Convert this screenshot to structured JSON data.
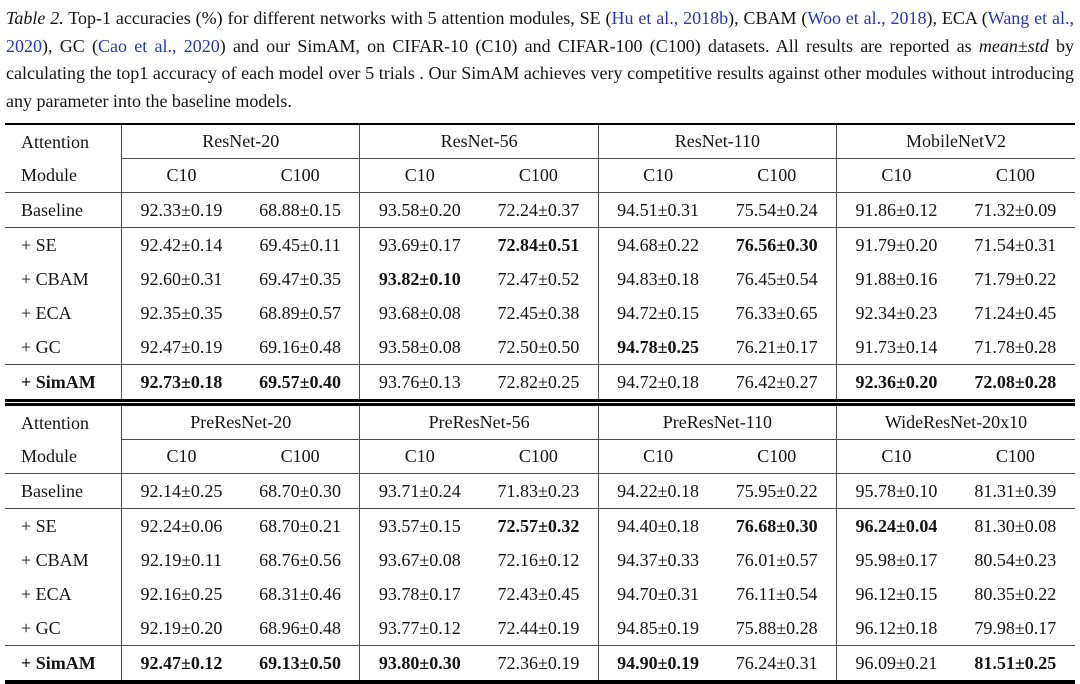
{
  "colors": {
    "citation_link": "#2636b4",
    "text": "#141414",
    "rule_thin": "#4d4d4d",
    "rule_thick": "#000000"
  },
  "caption": {
    "segments": [
      {
        "text": "Table 2.",
        "style": "italic"
      },
      {
        "text": " Top-1 accuracies (%) for different networks with 5 attention modules, SE (",
        "style": "normal"
      },
      {
        "text": "Hu et al., 2018b",
        "style": "link"
      },
      {
        "text": "), CBAM (",
        "style": "normal"
      },
      {
        "text": "Woo et al., 2018",
        "style": "link"
      },
      {
        "text": "), ECA (",
        "style": "normal"
      },
      {
        "text": "Wang et al., 2020",
        "style": "link"
      },
      {
        "text": "), GC (",
        "style": "normal"
      },
      {
        "text": "Cao et al., 2020",
        "style": "link"
      },
      {
        "text": ") and our SimAM, on CIFAR-10 (C10) and CIFAR-100 (C100) datasets. All results are reported as ",
        "style": "normal"
      },
      {
        "text": "mean±std",
        "style": "italic"
      },
      {
        "text": " by calculating the top1 accuracy of each model over 5 trials . Our SimAM achieves very competitive results against other modules without introducing any parameter into the baseline models.",
        "style": "normal"
      }
    ]
  },
  "tables": [
    {
      "corner": [
        "Attention",
        "Module"
      ],
      "groups": [
        "ResNet-20",
        "ResNet-56",
        "ResNet-110",
        "MobileNetV2"
      ],
      "subheaders": [
        "C10",
        "C100"
      ],
      "rows": [
        {
          "label": "Baseline",
          "label_bold": false,
          "values": [
            "92.33±0.19",
            "68.88±0.15",
            "93.58±0.20",
            "72.24±0.37",
            "94.51±0.31",
            "75.54±0.24",
            "91.86±0.12",
            "71.32±0.09"
          ],
          "bold": [
            false,
            false,
            false,
            false,
            false,
            false,
            false,
            false
          ]
        },
        {
          "label": "+ SE",
          "label_bold": false,
          "values": [
            "92.42±0.14",
            "69.45±0.11",
            "93.69±0.17",
            "72.84±0.51",
            "94.68±0.22",
            "76.56±0.30",
            "91.79±0.20",
            "71.54±0.31"
          ],
          "bold": [
            false,
            false,
            false,
            true,
            false,
            true,
            false,
            false
          ]
        },
        {
          "label": "+ CBAM",
          "label_bold": false,
          "values": [
            "92.60±0.31",
            "69.47±0.35",
            "93.82±0.10",
            "72.47±0.52",
            "94.83±0.18",
            "76.45±0.54",
            "91.88±0.16",
            "71.79±0.22"
          ],
          "bold": [
            false,
            false,
            true,
            false,
            false,
            false,
            false,
            false
          ]
        },
        {
          "label": "+ ECA",
          "label_bold": false,
          "values": [
            "92.35±0.35",
            "68.89±0.57",
            "93.68±0.08",
            "72.45±0.38",
            "94.72±0.15",
            "76.33±0.65",
            "92.34±0.23",
            "71.24±0.45"
          ],
          "bold": [
            false,
            false,
            false,
            false,
            false,
            false,
            false,
            false
          ]
        },
        {
          "label": "+ GC",
          "label_bold": false,
          "values": [
            "92.47±0.19",
            "69.16±0.48",
            "93.58±0.08",
            "72.50±0.50",
            "94.78±0.25",
            "76.21±0.17",
            "91.73±0.14",
            "71.78±0.28"
          ],
          "bold": [
            false,
            false,
            false,
            false,
            true,
            false,
            false,
            false
          ]
        },
        {
          "label": "+ SimAM",
          "label_bold": true,
          "values": [
            "92.73±0.18",
            "69.57±0.40",
            "93.76±0.13",
            "72.82±0.25",
            "94.72±0.18",
            "76.42±0.27",
            "92.36±0.20",
            "72.08±0.28"
          ],
          "bold": [
            true,
            true,
            false,
            false,
            false,
            false,
            true,
            true
          ]
        }
      ]
    },
    {
      "corner": [
        "Attention",
        "Module"
      ],
      "groups": [
        "PreResNet-20",
        "PreResNet-56",
        "PreResNet-110",
        "WideResNet-20x10"
      ],
      "subheaders": [
        "C10",
        "C100"
      ],
      "rows": [
        {
          "label": "Baseline",
          "label_bold": false,
          "values": [
            "92.14±0.25",
            "68.70±0.30",
            "93.71±0.24",
            "71.83±0.23",
            "94.22±0.18",
            "75.95±0.22",
            "95.78±0.10",
            "81.31±0.39"
          ],
          "bold": [
            false,
            false,
            false,
            false,
            false,
            false,
            false,
            false
          ]
        },
        {
          "label": "+ SE",
          "label_bold": false,
          "values": [
            "92.24±0.06",
            "68.70±0.21",
            "93.57±0.15",
            "72.57±0.32",
            "94.40±0.18",
            "76.68±0.30",
            "96.24±0.04",
            "81.30±0.08"
          ],
          "bold": [
            false,
            false,
            false,
            true,
            false,
            true,
            true,
            false
          ]
        },
        {
          "label": "+ CBAM",
          "label_bold": false,
          "values": [
            "92.19±0.11",
            "68.76±0.56",
            "93.67±0.08",
            "72.16±0.12",
            "94.37±0.33",
            "76.01±0.57",
            "95.98±0.17",
            "80.54±0.23"
          ],
          "bold": [
            false,
            false,
            false,
            false,
            false,
            false,
            false,
            false
          ]
        },
        {
          "label": "+ ECA",
          "label_bold": false,
          "values": [
            "92.16±0.25",
            "68.31±0.46",
            "93.78±0.17",
            "72.43±0.45",
            "94.70±0.31",
            "76.11±0.54",
            "96.12±0.15",
            "80.35±0.22"
          ],
          "bold": [
            false,
            false,
            false,
            false,
            false,
            false,
            false,
            false
          ]
        },
        {
          "label": "+ GC",
          "label_bold": false,
          "values": [
            "92.19±0.20",
            "68.96±0.48",
            "93.77±0.12",
            "72.44±0.19",
            "94.85±0.19",
            "75.88±0.28",
            "96.12±0.18",
            "79.98±0.17"
          ],
          "bold": [
            false,
            false,
            false,
            false,
            false,
            false,
            false,
            false
          ]
        },
        {
          "label": "+ SimAM",
          "label_bold": true,
          "values": [
            "92.47±0.12",
            "69.13±0.50",
            "93.80±0.30",
            "72.36±0.19",
            "94.90±0.19",
            "76.24±0.31",
            "96.09±0.21",
            "81.51±0.25"
          ],
          "bold": [
            true,
            true,
            true,
            false,
            true,
            false,
            false,
            true
          ]
        }
      ]
    }
  ]
}
